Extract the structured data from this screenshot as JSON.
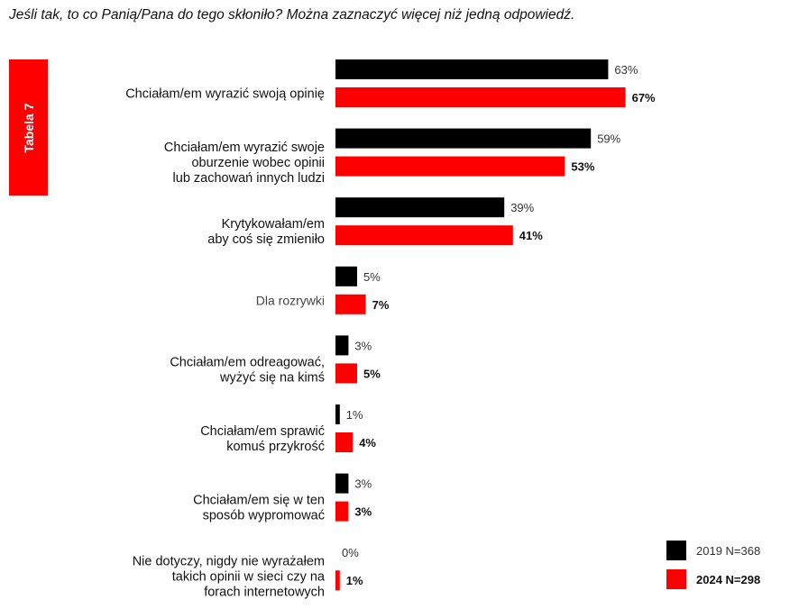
{
  "question": "Jeśli tak, to co Panią/Pana do tego skłoniło? Można zaznaczyć więcej niż jedną odpowiedź.",
  "side_tab": "Tabela 7",
  "chart_data": {
    "type": "bar",
    "orientation": "horizontal",
    "categories": [
      [
        "Chciałam/em wyrazić swoją opinię"
      ],
      [
        "Chciałam/em wyrazić swoje",
        "oburzenie wobec opinii",
        "lub zachowań innych ludzi"
      ],
      [
        "Krytykowałam/em",
        "aby coś się zmieniło"
      ],
      [
        "Dla rozrywki"
      ],
      [
        "Chciałam/em odreagować,",
        "wyżyć się na kimś"
      ],
      [
        "Chciałam/em sprawić",
        "komuś przykrość"
      ],
      [
        "Chciałam/em się w ten",
        "sposób wypromować"
      ],
      [
        "Nie dotyczy, nigdy nie wyrażałem",
        "takich opinii w sieci czy na",
        "forach internetowych"
      ]
    ],
    "series": [
      {
        "name": "2019 N=368",
        "color": "#000000",
        "values": [
          63,
          59,
          39,
          5,
          3,
          1,
          3,
          0
        ],
        "labels": [
          "63%",
          "59%",
          "39%",
          "5%",
          "3%",
          "1%",
          "3%",
          "0%"
        ]
      },
      {
        "name": "2024 N=298",
        "color": "#ff0000",
        "values": [
          67,
          53,
          41,
          7,
          5,
          4,
          3,
          1
        ],
        "labels": [
          "67%",
          "53%",
          "41%",
          "7%",
          "5%",
          "4%",
          "3%",
          "1%"
        ]
      }
    ],
    "xlim": [
      0,
      100
    ],
    "grid": false,
    "legend_position": "bottom-right"
  }
}
